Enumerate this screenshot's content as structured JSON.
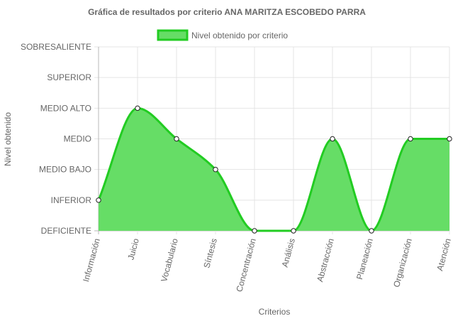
{
  "chart_data": {
    "type": "area",
    "title": "Gráfica de resultados por criterio ANA MARITZA ESCOBEDO PARRA",
    "xlabel": "Criterios",
    "ylabel": "Nivel obtenido",
    "categories": [
      "Información",
      "Juicio",
      "Vocabulario",
      "Síntesis",
      "Concentración",
      "Análisis",
      "Abstracción",
      "Planeación",
      "Organización",
      "Atención"
    ],
    "y_levels": [
      "DEFICIENTE",
      "INFERIOR",
      "MEDIO BAJO",
      "MEDIO",
      "MEDIO ALTO",
      "SUPERIOR",
      "SOBRESALIENTE"
    ],
    "ylim": [
      0,
      6
    ],
    "grid": true,
    "legend_position": "top-center",
    "series": [
      {
        "name": "Nivel obtenido por criterio",
        "values": [
          1,
          4,
          3,
          2,
          0,
          0,
          3,
          0,
          3,
          3
        ],
        "fill_color": "#66dd66",
        "line_color": "#22cc22"
      }
    ]
  }
}
